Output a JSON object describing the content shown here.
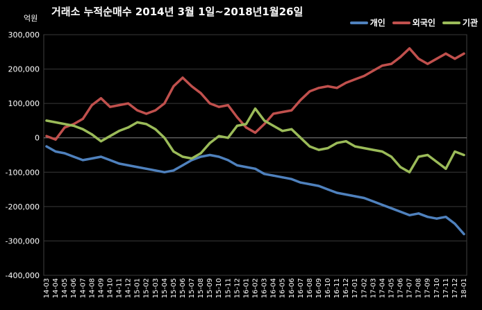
{
  "chart_data": {
    "type": "line",
    "title": "거래소  누적순매수 2014년 3월 1일~2018년1월26일",
    "ylabel": "억원",
    "ylim": [
      -400000,
      300000
    ],
    "yticks": [
      300000,
      200000,
      100000,
      0,
      -100000,
      -200000,
      -300000,
      -400000
    ],
    "ytick_labels": [
      "300,000",
      "200,000",
      "100,000",
      "0",
      "-100,000",
      "-200,000",
      "-300,000",
      "-400,000"
    ],
    "grid": true,
    "legend": "top-right",
    "x": [
      "14-03",
      "14-04",
      "14-05",
      "14-06",
      "14-07",
      "14-08",
      "14-09",
      "14-10",
      "14-11",
      "14-12",
      "15-01",
      "15-02",
      "15-03",
      "15-04",
      "15-05",
      "15-06",
      "15-07",
      "15-08",
      "15-09",
      "15-10",
      "15-11",
      "15-12",
      "16-01",
      "16-02",
      "16-03",
      "16-04",
      "16-05",
      "16-06",
      "16-07",
      "16-08",
      "16-09",
      "16-10",
      "16-11",
      "16-12",
      "17-01",
      "17-02",
      "17-03",
      "17-04",
      "17-05",
      "17-06",
      "17-07",
      "17-08",
      "17-09",
      "17-10",
      "17-11",
      "17-12",
      "18-01"
    ],
    "series": [
      {
        "name": "개인",
        "color": "#4f81bd",
        "values": [
          -25000,
          -40000,
          -45000,
          -55000,
          -65000,
          -60000,
          -55000,
          -65000,
          -75000,
          -80000,
          -85000,
          -90000,
          -95000,
          -100000,
          -95000,
          -80000,
          -65000,
          -55000,
          -50000,
          -55000,
          -65000,
          -80000,
          -85000,
          -90000,
          -105000,
          -110000,
          -115000,
          -120000,
          -130000,
          -135000,
          -140000,
          -150000,
          -160000,
          -165000,
          -170000,
          -175000,
          -185000,
          -195000,
          -205000,
          -215000,
          -225000,
          -220000,
          -230000,
          -235000,
          -230000,
          -250000,
          -280000
        ]
      },
      {
        "name": "외국인",
        "color": "#c0504d",
        "values": [
          5000,
          -5000,
          30000,
          40000,
          55000,
          95000,
          115000,
          90000,
          95000,
          100000,
          80000,
          70000,
          80000,
          100000,
          150000,
          175000,
          150000,
          130000,
          100000,
          90000,
          95000,
          60000,
          30000,
          15000,
          40000,
          70000,
          75000,
          80000,
          110000,
          135000,
          145000,
          150000,
          145000,
          160000,
          170000,
          180000,
          195000,
          210000,
          215000,
          235000,
          260000,
          230000,
          215000,
          230000,
          245000,
          230000,
          245000
        ]
      },
      {
        "name": "기관",
        "color": "#9bbb59",
        "values": [
          50000,
          45000,
          40000,
          35000,
          25000,
          10000,
          -10000,
          5000,
          20000,
          30000,
          45000,
          40000,
          25000,
          0,
          -40000,
          -55000,
          -60000,
          -45000,
          -15000,
          5000,
          0,
          35000,
          40000,
          85000,
          50000,
          35000,
          20000,
          25000,
          0,
          -25000,
          -35000,
          -30000,
          -15000,
          -10000,
          -25000,
          -30000,
          -35000,
          -40000,
          -55000,
          -85000,
          -100000,
          -55000,
          -50000,
          -70000,
          -90000,
          -40000,
          -50000
        ]
      }
    ]
  }
}
